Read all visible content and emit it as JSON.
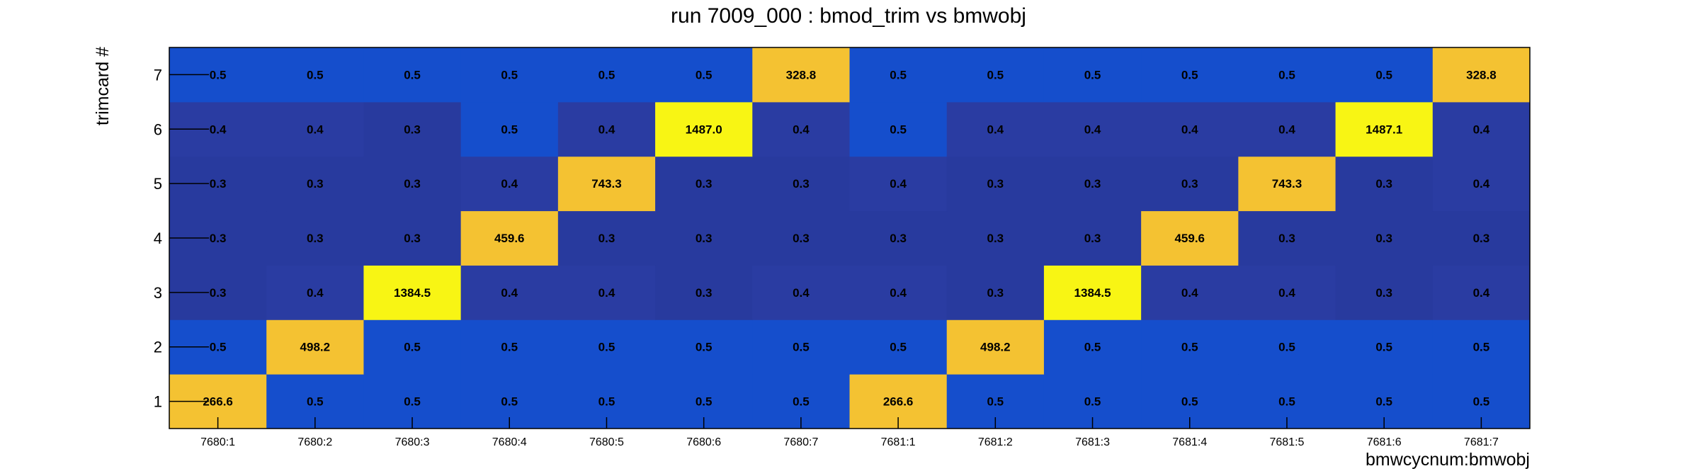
{
  "chart_data": {
    "type": "heatmap",
    "title": "run 7009_000 : bmod_trim vs bmwobj",
    "xlabel": "bmwcycnum:bmwobj",
    "ylabel": "trimcard #",
    "x_categories": [
      "7680:1",
      "7680:2",
      "7680:3",
      "7680:4",
      "7680:5",
      "7680:6",
      "7680:7",
      "7681:1",
      "7681:2",
      "7681:3",
      "7681:4",
      "7681:5",
      "7681:6",
      "7681:7"
    ],
    "y_categories": [
      "1",
      "2",
      "3",
      "4",
      "5",
      "6",
      "7"
    ],
    "values": [
      [
        266.6,
        0.5,
        0.5,
        0.5,
        0.5,
        0.5,
        0.5,
        266.6,
        0.5,
        0.5,
        0.5,
        0.5,
        0.5,
        0.5
      ],
      [
        0.5,
        498.2,
        0.5,
        0.5,
        0.5,
        0.5,
        0.5,
        0.5,
        498.2,
        0.5,
        0.5,
        0.5,
        0.5,
        0.5
      ],
      [
        0.3,
        0.4,
        1384.5,
        0.4,
        0.4,
        0.3,
        0.4,
        0.4,
        0.3,
        1384.5,
        0.4,
        0.4,
        0.3,
        0.4
      ],
      [
        0.3,
        0.3,
        0.3,
        459.6,
        0.3,
        0.3,
        0.3,
        0.3,
        0.3,
        0.3,
        459.6,
        0.3,
        0.3,
        0.3
      ],
      [
        0.3,
        0.3,
        0.3,
        0.4,
        743.3,
        0.3,
        0.3,
        0.4,
        0.3,
        0.3,
        0.3,
        743.3,
        0.3,
        0.4
      ],
      [
        0.4,
        0.4,
        0.3,
        0.5,
        0.4,
        1487.0,
        0.4,
        0.5,
        0.4,
        0.4,
        0.4,
        0.4,
        1487.1,
        0.4
      ],
      [
        0.5,
        0.5,
        0.5,
        0.5,
        0.5,
        0.5,
        328.8,
        0.5,
        0.5,
        0.5,
        0.5,
        0.5,
        0.5,
        328.8
      ]
    ],
    "labels": [
      [
        "266.6",
        "0.5",
        "0.5",
        "0.5",
        "0.5",
        "0.5",
        "0.5",
        "266.6",
        "0.5",
        "0.5",
        "0.5",
        "0.5",
        "0.5",
        "0.5"
      ],
      [
        "0.5",
        "498.2",
        "0.5",
        "0.5",
        "0.5",
        "0.5",
        "0.5",
        "0.5",
        "498.2",
        "0.5",
        "0.5",
        "0.5",
        "0.5",
        "0.5"
      ],
      [
        "0.3",
        "0.4",
        "1384.5",
        "0.4",
        "0.4",
        "0.3",
        "0.4",
        "0.4",
        "0.3",
        "1384.5",
        "0.4",
        "0.4",
        "0.3",
        "0.4"
      ],
      [
        "0.3",
        "0.3",
        "0.3",
        "459.6",
        "0.3",
        "0.3",
        "0.3",
        "0.3",
        "0.3",
        "0.3",
        "459.6",
        "0.3",
        "0.3",
        "0.3"
      ],
      [
        "0.3",
        "0.3",
        "0.3",
        "0.4",
        "743.3",
        "0.3",
        "0.3",
        "0.4",
        "0.3",
        "0.3",
        "0.3",
        "743.3",
        "0.3",
        "0.4"
      ],
      [
        "0.4",
        "0.4",
        "0.3",
        "0.5",
        "0.4",
        "1487.0",
        "0.4",
        "0.5",
        "0.4",
        "0.4",
        "0.4",
        "0.4",
        "1487.1",
        "0.4"
      ],
      [
        "0.5",
        "0.5",
        "0.5",
        "0.5",
        "0.5",
        "0.5",
        "328.8",
        "0.5",
        "0.5",
        "0.5",
        "0.5",
        "0.5",
        "0.5",
        "328.8"
      ]
    ],
    "color_scale": {
      "0.3": "#283a9e",
      "0.4": "#2a3ca2",
      "0.5": "#154ecc",
      "high": "#f4c232",
      "max": "#f8f514"
    },
    "grid": false,
    "legend": "none"
  }
}
